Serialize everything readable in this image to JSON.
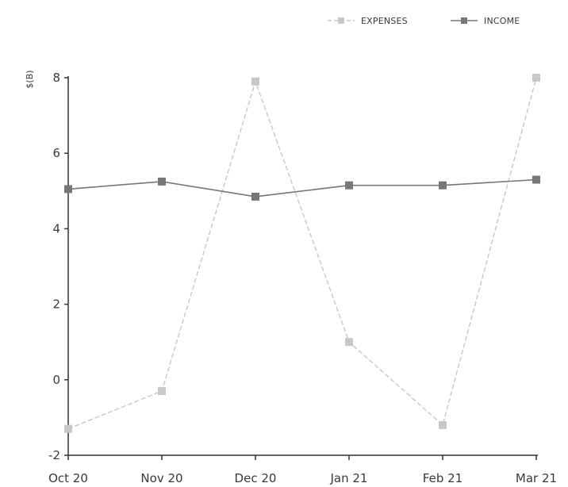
{
  "chart_data": {
    "type": "line",
    "title": "",
    "xlabel": "",
    "ylabel": "$(B)",
    "categories": [
      "Oct 20",
      "Nov 20",
      "Dec 20",
      "Jan 21",
      "Feb 21",
      "Mar 21"
    ],
    "ylim": [
      -2,
      8
    ],
    "yticks": [
      -2,
      0,
      2,
      4,
      6,
      8
    ],
    "grid": false,
    "legend_position": "top-right",
    "series": [
      {
        "name": "EXPENSES",
        "color": "#c8c8c8",
        "style": "dashed",
        "values": [
          -1.3,
          -0.3,
          7.9,
          1.0,
          -1.2,
          8.0
        ]
      },
      {
        "name": "INCOME",
        "color": "#777777",
        "style": "solid",
        "values": [
          5.05,
          5.25,
          4.85,
          5.15,
          5.15,
          5.3
        ]
      }
    ]
  }
}
